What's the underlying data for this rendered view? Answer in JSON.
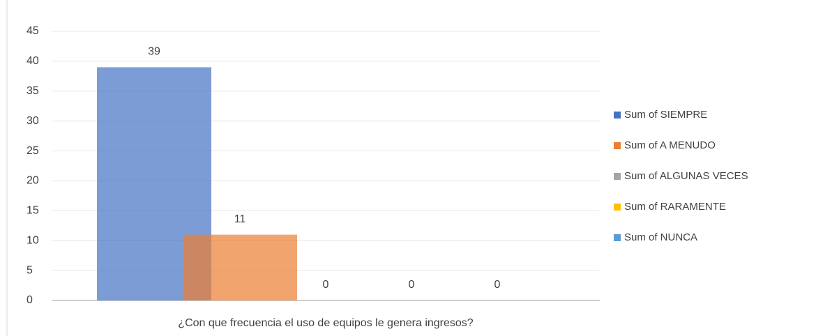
{
  "chart_data": {
    "type": "bar",
    "categories": [
      "¿Con que frecuencia el uso de equipos le genera ingresos?"
    ],
    "series": [
      {
        "name": "Sum of SIEMPRE",
        "color": "#4472c4",
        "values": [
          39
        ]
      },
      {
        "name": "Sum of A MENUDO",
        "color": "#ed7d31",
        "values": [
          11
        ]
      },
      {
        "name": "Sum of ALGUNAS VECES",
        "color": "#a5a5a5",
        "values": [
          0
        ]
      },
      {
        "name": "Sum of RARAMENTE",
        "color": "#ffc000",
        "values": [
          0
        ]
      },
      {
        "name": "Sum of NUNCA",
        "color": "#5b9bd5",
        "values": [
          0
        ]
      }
    ],
    "ylim": [
      0,
      45
    ],
    "yticks": [
      0,
      5,
      10,
      15,
      20,
      25,
      30,
      35,
      40,
      45
    ],
    "grid": true,
    "legend": "right"
  }
}
